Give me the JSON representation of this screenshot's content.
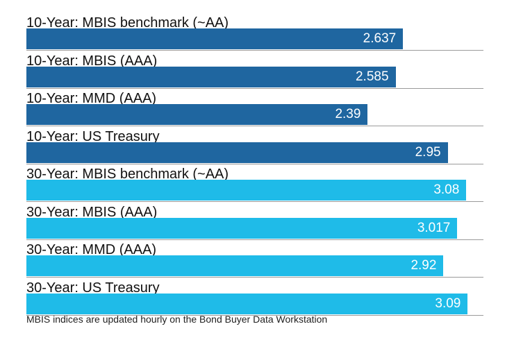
{
  "chart_data": {
    "type": "bar",
    "orientation": "horizontal",
    "categories": [
      "10-Year: MBIS benchmark (~AA)",
      "10-Year: MBIS (AAA)",
      "10-Year: MMD (AAA)",
      "10-Year: US Treasury",
      "30-Year: MBIS benchmark (~AA)",
      "30-Year: MBIS (AAA)",
      "30-Year: MMD (AAA)",
      "30-Year: US Treasury"
    ],
    "values": [
      2.637,
      2.585,
      2.39,
      2.95,
      3.08,
      3.017,
      2.92,
      3.09
    ],
    "value_labels": [
      "2.637",
      "2.585",
      "2.39",
      "2.95",
      "3.08",
      "3.017",
      "2.92",
      "3.09"
    ],
    "bar_colors": [
      "#1f66a0",
      "#1f66a0",
      "#1f66a0",
      "#1f66a0",
      "#1fbbe8",
      "#1fbbe8",
      "#1fbbe8",
      "#1fbbe8"
    ],
    "xlim": [
      0,
      3.2
    ],
    "grid": false,
    "legend": "none",
    "footnote": "MBIS indices are updated hourly on the Bond Buyer Data Workstation"
  }
}
